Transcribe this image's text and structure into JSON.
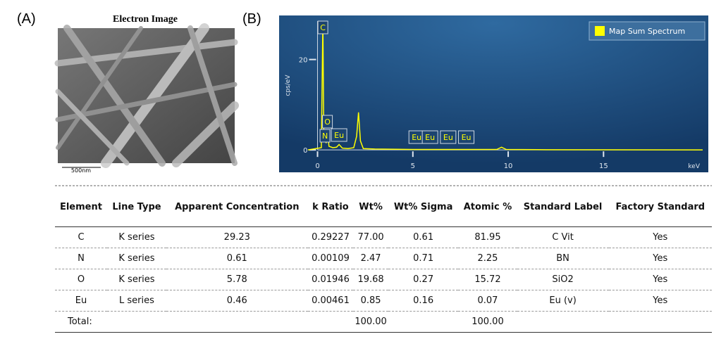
{
  "panel_a": {
    "label": "(A)",
    "title": "Electron Image",
    "scale_bar": "500nm"
  },
  "panel_b": {
    "label": "(B)"
  },
  "chart_data": {
    "type": "line",
    "y_label": "cps/eV",
    "x_unit": "keV",
    "xlim": [
      -0.5,
      20.2
    ],
    "ylim": [
      -2,
      28.5
    ],
    "xticks": [
      0,
      5,
      10,
      15
    ],
    "yticks": [
      0,
      20
    ],
    "legend": "upper right",
    "series": [
      {
        "name": "Map Sum Spectrum",
        "color": "#ffff00",
        "x": [
          -0.5,
          0.2,
          0.28,
          0.33,
          0.39,
          0.45,
          0.52,
          0.6,
          0.8,
          1.0,
          1.13,
          1.3,
          1.6,
          1.9,
          2.05,
          2.15,
          2.25,
          2.4,
          3,
          5,
          9.4,
          9.65,
          9.9,
          12,
          20.2
        ],
        "values": [
          0,
          0.5,
          28.5,
          2,
          3,
          1.5,
          4.5,
          0.8,
          0.5,
          0.6,
          1.2,
          0.4,
          0.3,
          0.5,
          3,
          8.3,
          2,
          0.3,
          0.2,
          0.1,
          0.1,
          0.6,
          0.1,
          0.05,
          0
        ]
      }
    ],
    "annotations": [
      {
        "label": "C",
        "x": 0.28
      },
      {
        "label": "O",
        "x": 0.52
      },
      {
        "label": "N",
        "x": 0.39
      },
      {
        "label": "Eu",
        "x": 1.13
      },
      {
        "label": "Eu",
        "x": 5.2
      },
      {
        "label": "Eu",
        "x": 5.9
      },
      {
        "label": "Eu",
        "x": 6.85
      },
      {
        "label": "Eu",
        "x": 7.8
      }
    ]
  },
  "table": {
    "headers": [
      "Element",
      "Line Type",
      "Apparent Concentration",
      "k Ratio",
      "Wt%",
      "Wt% Sigma",
      "Atomic %",
      "Standard Label",
      "Factory Standard"
    ],
    "rows": [
      [
        "C",
        "K series",
        "29.23",
        "0.29227",
        "77.00",
        "0.61",
        "81.95",
        "C Vit",
        "Yes"
      ],
      [
        "N",
        "K series",
        "0.61",
        "0.00109",
        "2.47",
        "0.71",
        "2.25",
        "BN",
        "Yes"
      ],
      [
        "O",
        "K series",
        "5.78",
        "0.01946",
        "19.68",
        "0.27",
        "15.72",
        "SiO2",
        "Yes"
      ],
      [
        "Eu",
        "L series",
        "0.46",
        "0.00461",
        "0.85",
        "0.16",
        "0.07",
        "Eu (v)",
        "Yes"
      ]
    ],
    "total": {
      "label": "Total:",
      "wt": "100.00",
      "atomic": "100.00"
    }
  }
}
